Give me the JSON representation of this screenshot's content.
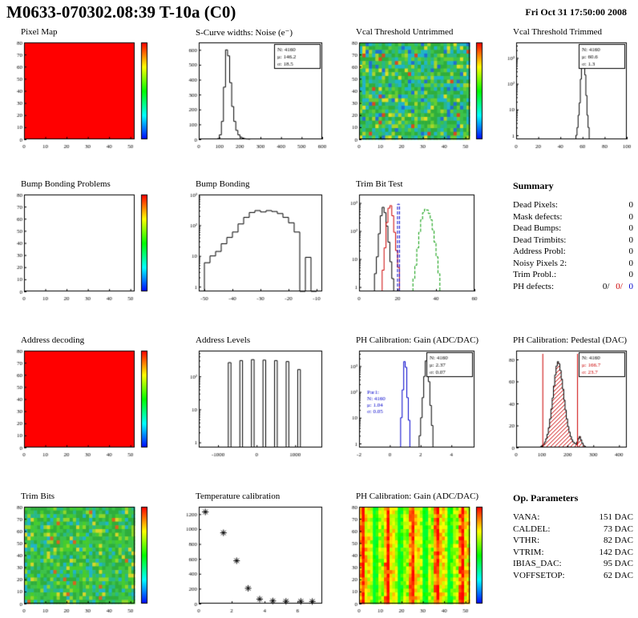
{
  "header": {
    "title": "M0633-070302.08:39 T-10a (C0)",
    "date": "Fri Oct 31 17:50:00 2008"
  },
  "colors": {
    "accent_red": "#cc0000",
    "accent_blue": "#0000cc",
    "map_red": "#ff0000"
  },
  "panels": {
    "summary": {
      "title": "Summary",
      "items": [
        {
          "label": "Dead Pixels:",
          "value": "0"
        },
        {
          "label": "Mask defects:",
          "value": "0"
        },
        {
          "label": "Dead Bumps:",
          "value": "0"
        },
        {
          "label": "Dead Trimbits:",
          "value": "0"
        },
        {
          "label": "Address Probl:",
          "value": "0"
        },
        {
          "label": "Noisy Pixels 2:",
          "value": "0"
        },
        {
          "label": "Trim Probl.:",
          "value": "0"
        }
      ],
      "ph_defects": {
        "label": "PH defects:",
        "v1": "0/",
        "v2": "0/",
        "v3": "0"
      }
    },
    "op_params": {
      "title": "Op. Parameters",
      "items": [
        {
          "label": "VANA:",
          "value": "151 DAC"
        },
        {
          "label": "CALDEL:",
          "value": "73 DAC"
        },
        {
          "label": "VTHR:",
          "value": "82 DAC"
        },
        {
          "label": "VTRIM:",
          "value": "142 DAC"
        },
        {
          "label": "IBIAS_DAC:",
          "value": "95 DAC"
        },
        {
          "label": "VOFFSETOP:",
          "value": "62 DAC"
        }
      ]
    }
  },
  "chart_data": [
    {
      "type": "heatmap",
      "variant": "solid",
      "title": "Pixel Map",
      "fill": "#ff0000",
      "xrange": [
        0,
        52
      ],
      "yrange": [
        0,
        80
      ],
      "xticks": [
        0,
        10,
        20,
        30,
        40,
        50
      ],
      "yticks": [
        0,
        10,
        20,
        30,
        40,
        50,
        60,
        70,
        80
      ],
      "colorbar": true
    },
    {
      "type": "hist",
      "title": "S-Curve widths: Noise (e⁻)",
      "xrange": [
        0,
        600
      ],
      "yrange": [
        0,
        650
      ],
      "xticks": [
        0,
        100,
        200,
        300,
        400,
        500,
        600
      ],
      "yticks": [
        0,
        100,
        200,
        300,
        400,
        500,
        600
      ],
      "bins": {
        "x0": 90,
        "dx": 10,
        "values": [
          5,
          30,
          120,
          350,
          600,
          560,
          380,
          220,
          120,
          60,
          30,
          15,
          8,
          4,
          2,
          1
        ]
      },
      "stats": [
        {
          "t": "N: 4160"
        },
        {
          "t": "μ: 146.2"
        },
        {
          "t": "σ: 18.5"
        }
      ]
    },
    {
      "type": "heatmap",
      "variant": "noise",
      "title": "Vcal Threshold Untrimmed",
      "seed": 7,
      "colors": [
        "#2fae3c",
        "#3cc24a",
        "#27b889",
        "#1fb4c8",
        "#65cc33",
        "#a8d42a",
        "#e0de25",
        "#1f6fd0",
        "#d64a1f"
      ],
      "weights": [
        24,
        20,
        16,
        14,
        9,
        6,
        4,
        5,
        2
      ],
      "xrange": [
        0,
        52
      ],
      "yrange": [
        0,
        80
      ],
      "xticks": [
        0,
        10,
        20,
        30,
        40,
        50
      ],
      "yticks": [
        0,
        10,
        20,
        30,
        40,
        50,
        60,
        70,
        80
      ],
      "colorbar": true
    },
    {
      "type": "hist",
      "logy": true,
      "title": "Vcal Threshold Trimmed",
      "xrange": [
        0,
        100
      ],
      "ymax": 4000,
      "xticks": [
        0,
        20,
        40,
        60,
        80,
        100
      ],
      "bins": {
        "x0": 54,
        "dx": 1,
        "values": [
          1,
          2,
          6,
          18,
          150,
          1000,
          2600,
          1100,
          220,
          35,
          6,
          2
        ]
      },
      "stats": [
        {
          "t": "N: 4160"
        },
        {
          "t": "μ: 60.6"
        },
        {
          "t": "σ: 1.3"
        }
      ]
    },
    {
      "type": "heatmap",
      "variant": "empty",
      "title": "Bump Bonding Problems",
      "xrange": [
        0,
        52
      ],
      "yrange": [
        0,
        80
      ],
      "xticks": [
        0,
        10,
        20,
        30,
        40,
        50
      ],
      "yticks": [
        0,
        10,
        20,
        30,
        40,
        50,
        60,
        70,
        80
      ],
      "colorbar": true
    },
    {
      "type": "hist",
      "logy": true,
      "title": "Bump Bonding",
      "xrange": [
        -52,
        -8
      ],
      "ymax": 1000,
      "xticks": [
        -50,
        -40,
        -30,
        -20,
        -10
      ],
      "bins": {
        "x0": -50,
        "dx": 2,
        "values": [
          6,
          10,
          14,
          25,
          40,
          60,
          110,
          180,
          260,
          300,
          270,
          300,
          280,
          240,
          180,
          120,
          60,
          0,
          9,
          0
        ]
      }
    },
    {
      "type": "multihist",
      "logy": true,
      "title": "Trim Bit Test",
      "xrange": [
        0,
        60
      ],
      "ymax": 2000,
      "xticks": [
        0,
        20,
        40,
        60
      ],
      "series": [
        {
          "color": "#000000",
          "bins": {
            "x0": 8,
            "dx": 1,
            "values": [
              3,
              12,
              80,
              350,
              700,
              450,
              150,
              40,
              8,
              2
            ]
          }
        },
        {
          "color": "#cc0000",
          "bins": {
            "x0": 12,
            "dx": 1,
            "values": [
              4,
              25,
              200,
              650,
              800,
              350,
              90,
              20,
              5
            ]
          }
        },
        {
          "color": "#009900",
          "dash": true,
          "bins": {
            "x0": 28,
            "dx": 1,
            "values": [
              2,
              6,
              25,
              90,
              250,
              450,
              600,
              560,
              420,
              250,
              110,
              40,
              12,
              3
            ]
          }
        },
        {
          "color": "#0000cc",
          "dash": true,
          "bins": {
            "x0": 20,
            "dx": 1,
            "values": [
              900
            ]
          }
        }
      ]
    },
    {
      "type": "heatmap",
      "variant": "solid",
      "title": "Address decoding",
      "fill": "#ff0000",
      "xrange": [
        0,
        52
      ],
      "yrange": [
        0,
        80
      ],
      "xticks": [
        0,
        10,
        20,
        30,
        40,
        50
      ],
      "yticks": [
        0,
        10,
        20,
        30,
        40,
        50,
        60,
        70,
        80
      ],
      "colorbar": true
    },
    {
      "type": "spikes",
      "logy": true,
      "title": "Address Levels",
      "xrange": [
        -1500,
        1700
      ],
      "ymax": 600,
      "xticks": [
        -1000,
        0,
        1000
      ],
      "spikes": [
        [
          -700,
          260
        ],
        [
          -400,
          300
        ],
        [
          -100,
          320
        ],
        [
          200,
          310
        ],
        [
          500,
          300
        ],
        [
          800,
          280
        ],
        [
          1100,
          160
        ]
      ],
      "spike_halfwidth": 35
    },
    {
      "type": "multihist",
      "logy": true,
      "title": "PH Calibration: Gain (ADC/DAC)",
      "xrange": [
        -2,
        5.5
      ],
      "ymax": 4000,
      "xticks": [
        -2,
        0,
        2,
        4
      ],
      "series": [
        {
          "color": "#0000cc",
          "bins": {
            "x0": 0.7,
            "dx": 0.1,
            "values": [
              10,
              120,
              1500,
              900,
              60,
              8
            ]
          }
        },
        {
          "color": "#000000",
          "bins": {
            "x0": 1.9,
            "dx": 0.1,
            "values": [
              2,
              10,
              60,
              400,
              1600,
              1300,
              250,
              30,
              5
            ]
          }
        }
      ],
      "stats": [
        {
          "t": "N: 4160"
        },
        {
          "t": "μ: 2.37"
        },
        {
          "t": "σ: 0.07"
        }
      ],
      "texts": [
        {
          "fx": 0.07,
          "fy": 0.45,
          "color": "#0000cc",
          "lines": [
            "Par1:",
            "N: 4160",
            "μ: 1.04",
            "σ: 0.05"
          ]
        }
      ]
    },
    {
      "type": "hist",
      "title": "PH Calibration: Pedestal (DAC)",
      "xrange": [
        0,
        430
      ],
      "yrange": [
        0,
        88
      ],
      "xticks": [
        0,
        100,
        200,
        300,
        400
      ],
      "yticks": [
        0,
        20,
        40,
        60,
        80
      ],
      "fillstyle": "hatch-red",
      "bins": {
        "x0": 95,
        "dx": 5,
        "values": [
          1,
          2,
          3,
          5,
          8,
          12,
          18,
          26,
          35,
          45,
          56,
          66,
          74,
          78,
          76,
          70,
          62,
          53,
          43,
          34,
          26,
          19,
          14,
          10,
          7,
          5,
          4,
          3,
          5,
          8,
          10,
          7,
          4,
          2,
          1
        ]
      },
      "vlines": [
        {
          "x": 102,
          "color": "#cc0000"
        },
        {
          "x": 237,
          "color": "#cc0000"
        }
      ],
      "stats": [
        {
          "t": "N: 4160"
        },
        {
          "t": "μ: 166.7",
          "c": "#cc0000"
        },
        {
          "t": "σ: 23.7",
          "c": "#cc0000"
        }
      ]
    },
    {
      "type": "heatmap",
      "variant": "noise",
      "title": "Trim Bits",
      "seed": 13,
      "colors": [
        "#2fae3c",
        "#3cc24a",
        "#45cc2e",
        "#27b889",
        "#1fb4c8",
        "#8fd62a",
        "#d6d62a",
        "#d6641f"
      ],
      "weights": [
        26,
        22,
        16,
        12,
        9,
        8,
        5,
        2
      ],
      "xrange": [
        0,
        52
      ],
      "yrange": [
        0,
        80
      ],
      "xticks": [
        0,
        10,
        20,
        30,
        40,
        50
      ],
      "yticks": [
        0,
        10,
        20,
        30,
        40,
        50,
        60,
        70,
        80
      ],
      "colorbar": true
    },
    {
      "type": "scatter",
      "title": "Temperature calibration",
      "marker": "star",
      "xrange": [
        0,
        7.5
      ],
      "yrange": [
        0,
        1300
      ],
      "xticks": [
        0,
        2,
        4,
        6
      ],
      "yticks": [
        0,
        200,
        400,
        600,
        800,
        1000,
        1200
      ],
      "points": [
        [
          0.4,
          1230
        ],
        [
          1.5,
          950
        ],
        [
          2.3,
          575
        ],
        [
          3.0,
          205
        ],
        [
          3.7,
          60
        ],
        [
          4.5,
          35
        ],
        [
          5.3,
          30
        ],
        [
          6.2,
          30
        ],
        [
          6.9,
          28
        ]
      ]
    },
    {
      "type": "heatmap",
      "variant": "stripes",
      "title": "PH Calibration: Gain (ADC/DAC)",
      "seed": 21,
      "xrange": [
        0,
        52
      ],
      "yrange": [
        0,
        80
      ],
      "xticks": [
        0,
        10,
        20,
        30,
        40,
        50
      ],
      "yticks": [
        0,
        10,
        20,
        30,
        40,
        50,
        60,
        70,
        80
      ],
      "colorbar": true
    }
  ]
}
